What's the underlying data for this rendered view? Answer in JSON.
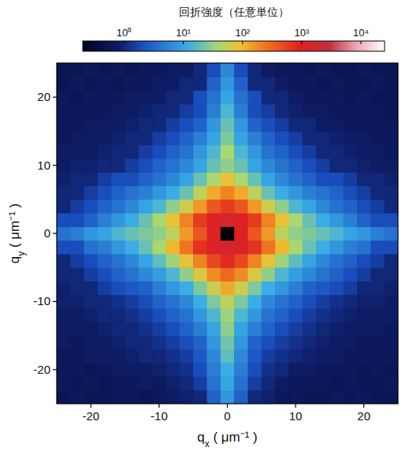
{
  "chart_data": {
    "type": "heatmap",
    "colorbar_label": "回折強度（任意単位）",
    "x_label": "qx ( μm⁻¹ )",
    "y_label": "qy ( μm⁻¹ )",
    "xlim": [
      -25,
      25
    ],
    "ylim": [
      -25,
      25
    ],
    "xticks": [
      -20,
      -10,
      0,
      10,
      20
    ],
    "yticks": [
      -20,
      -10,
      0,
      10,
      20
    ],
    "x": [
      -24,
      -22,
      -20,
      -18,
      -16,
      -14,
      -12,
      -10,
      -8,
      -6,
      -4,
      -2,
      0,
      2,
      4,
      6,
      8,
      10,
      12,
      14,
      16,
      18,
      20,
      22,
      24
    ],
    "y": [
      -24,
      -22,
      -20,
      -18,
      -16,
      -14,
      -12,
      -10,
      -8,
      -6,
      -4,
      -2,
      0,
      2,
      4,
      6,
      8,
      10,
      12,
      14,
      16,
      18,
      20,
      22,
      24
    ],
    "colorbar_lim": [
      0.2,
      25000
    ],
    "colorbar_ticks": [
      {
        "value": 1,
        "label": "10⁰"
      },
      {
        "value": 10,
        "label": "10¹"
      },
      {
        "value": 100,
        "label": "10²"
      },
      {
        "value": 1000,
        "label": "10³"
      },
      {
        "value": 10000,
        "label": "10⁴"
      }
    ],
    "cells": [
      [
        0.6,
        0.7,
        0.6,
        0.6,
        0.7,
        0.7,
        0.6,
        0.7,
        0.8,
        0.9,
        1,
        3,
        8,
        3,
        1,
        0.9,
        0.7,
        0.7,
        0.6,
        0.6,
        0.7,
        0.6,
        0.7,
        0.6,
        0.6
      ],
      [
        0.7,
        0.6,
        0.7,
        0.6,
        0.7,
        0.7,
        0.8,
        0.7,
        0.9,
        1,
        1.5,
        4,
        10,
        4,
        1.5,
        1,
        0.8,
        0.7,
        0.7,
        0.7,
        0.6,
        0.7,
        0.6,
        0.6,
        0.7
      ],
      [
        0.7,
        0.7,
        0.6,
        0.7,
        0.8,
        0.8,
        0.8,
        0.9,
        1,
        1.2,
        2,
        5,
        12,
        5,
        2,
        1.2,
        1,
        0.8,
        0.8,
        0.7,
        0.7,
        0.7,
        0.6,
        0.7,
        0.6
      ],
      [
        0.7,
        0.7,
        0.8,
        0.8,
        0.8,
        0.9,
        1,
        1,
        1.2,
        1.5,
        2.5,
        6,
        18,
        6,
        2.5,
        1.5,
        1.2,
        1,
        0.9,
        0.8,
        0.8,
        0.7,
        0.7,
        0.7,
        0.7
      ],
      [
        0.8,
        0.7,
        0.8,
        0.8,
        0.9,
        1,
        1,
        1.2,
        1.5,
        2,
        3,
        8,
        22,
        8,
        3,
        2,
        1.5,
        1.2,
        1,
        0.9,
        0.8,
        0.8,
        0.7,
        0.7,
        0.7
      ],
      [
        0.8,
        0.8,
        0.8,
        0.9,
        1,
        1,
        1.2,
        1.5,
        2,
        3,
        5,
        10,
        30,
        10,
        5,
        3,
        2,
        1.5,
        1.2,
        1,
        0.9,
        0.8,
        0.8,
        0.8,
        0.7
      ],
      [
        0.8,
        0.8,
        0.9,
        1,
        1,
        1.2,
        1.5,
        2,
        3,
        4,
        8,
        15,
        35,
        15,
        8,
        4,
        3,
        2,
        1.5,
        1.2,
        1,
        0.9,
        0.8,
        0.8,
        0.8
      ],
      [
        0.9,
        0.9,
        1,
        1,
        1.2,
        1.5,
        2,
        3,
        4,
        6,
        12,
        25,
        50,
        25,
        12,
        6,
        4,
        3,
        2,
        1.5,
        1.2,
        1,
        0.9,
        0.9,
        0.8
      ],
      [
        0.9,
        1,
        1,
        1.5,
        2,
        2.5,
        3,
        5,
        8,
        12,
        25,
        60,
        120,
        60,
        25,
        12,
        8,
        5,
        3,
        2.5,
        2,
        1.5,
        1,
        1,
        0.9
      ],
      [
        1,
        1,
        1.5,
        2,
        3,
        4,
        6,
        9,
        15,
        30,
        70,
        180,
        300,
        180,
        70,
        30,
        15,
        9,
        6,
        4,
        3,
        2,
        1.5,
        1,
        1
      ],
      [
        1,
        1.5,
        2,
        3,
        4,
        6,
        10,
        18,
        35,
        80,
        200,
        500,
        800,
        500,
        200,
        80,
        35,
        18,
        10,
        6,
        4,
        3,
        2,
        1.5,
        1
      ],
      [
        2,
        2,
        4,
        5,
        8,
        12,
        20,
        40,
        100,
        250,
        700,
        1200,
        1500,
        1200,
        700,
        250,
        100,
        40,
        20,
        12,
        8,
        5,
        4,
        2,
        2
      ],
      [
        4,
        5,
        8,
        10,
        15,
        20,
        25,
        30,
        50,
        150,
        400,
        1000,
        null,
        1000,
        400,
        150,
        50,
        30,
        25,
        20,
        15,
        10,
        8,
        5,
        4
      ],
      [
        2,
        2,
        3,
        5,
        8,
        12,
        20,
        40,
        80,
        200,
        600,
        1000,
        1500,
        1000,
        600,
        200,
        80,
        40,
        20,
        12,
        8,
        5,
        3,
        2,
        2
      ],
      [
        1,
        1.5,
        2,
        3,
        4,
        6,
        10,
        15,
        30,
        60,
        150,
        400,
        600,
        400,
        150,
        60,
        30,
        15,
        10,
        6,
        4,
        3,
        2,
        1.5,
        1
      ],
      [
        1,
        1,
        1.5,
        2,
        3,
        4,
        5,
        8,
        12,
        20,
        50,
        120,
        200,
        120,
        50,
        20,
        12,
        8,
        5,
        4,
        3,
        2,
        1.5,
        1,
        1
      ],
      [
        0.9,
        1,
        1,
        1.5,
        2,
        2,
        3,
        4,
        6,
        10,
        20,
        40,
        80,
        40,
        20,
        10,
        6,
        4,
        3,
        2,
        2,
        1.5,
        1,
        1,
        0.9
      ],
      [
        0.8,
        0.9,
        0.9,
        1,
        1,
        1.5,
        2,
        3,
        4,
        6,
        10,
        20,
        30,
        20,
        10,
        6,
        4,
        3,
        2,
        1.5,
        1,
        1,
        0.9,
        0.8,
        0.8
      ],
      [
        0.8,
        0.8,
        0.8,
        0.9,
        1,
        1,
        1.5,
        2,
        3,
        4,
        8,
        15,
        40,
        15,
        8,
        4,
        3,
        2,
        1.5,
        1,
        1,
        0.9,
        0.8,
        0.8,
        0.7
      ],
      [
        0.7,
        0.8,
        0.8,
        0.8,
        0.9,
        1,
        1,
        1.5,
        2,
        3,
        5,
        10,
        25,
        10,
        5,
        3,
        2,
        1.5,
        1,
        1,
        0.9,
        0.8,
        0.8,
        0.7,
        0.7
      ],
      [
        0.7,
        0.7,
        0.8,
        0.8,
        0.8,
        0.9,
        1,
        1,
        1.5,
        2,
        3,
        8,
        20,
        8,
        3,
        2,
        1.5,
        1,
        1,
        0.8,
        0.8,
        0.7,
        0.7,
        0.7,
        0.7
      ],
      [
        0.7,
        0.7,
        0.7,
        0.7,
        0.8,
        0.8,
        0.9,
        1,
        1,
        1.5,
        2,
        5,
        15,
        5,
        2,
        1.5,
        1,
        0.9,
        0.8,
        0.8,
        0.7,
        0.7,
        0.7,
        0.7,
        0.6
      ],
      [
        0.7,
        0.6,
        0.7,
        0.7,
        0.7,
        0.8,
        0.8,
        0.8,
        1,
        1,
        2,
        4,
        10,
        4,
        2,
        1,
        1,
        0.8,
        0.7,
        0.7,
        0.7,
        0.6,
        0.7,
        0.6,
        0.6
      ],
      [
        0.6,
        0.7,
        0.6,
        0.7,
        0.6,
        0.7,
        0.7,
        0.8,
        0.8,
        1,
        1,
        3,
        8,
        3,
        1,
        1,
        0.8,
        0.7,
        0.7,
        0.6,
        0.7,
        0.6,
        0.6,
        0.7,
        0.6
      ],
      [
        0.6,
        0.6,
        0.7,
        0.6,
        0.7,
        0.6,
        0.7,
        0.7,
        0.8,
        0.8,
        1,
        2,
        6,
        2,
        1,
        0.8,
        0.7,
        0.7,
        0.6,
        0.7,
        0.6,
        0.6,
        0.7,
        0.6,
        0.6
      ]
    ]
  }
}
